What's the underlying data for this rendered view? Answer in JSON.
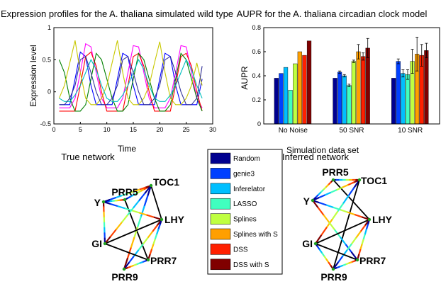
{
  "colors": {
    "random": "#00008f",
    "genie3": "#0040ff",
    "inferelator": "#00bfff",
    "lasso": "#40ffbf",
    "splines": "#bfff40",
    "splines_with_s": "#ff9f00",
    "dss": "#ff2000",
    "dss_with_s": "#800000"
  },
  "chart_data": [
    {
      "type": "line",
      "title": "Expression profiles for the A. thaliana simulated wild type",
      "xlabel": "Time",
      "ylabel": "Expression level",
      "xlim": [
        0,
        30
      ],
      "ylim": [
        -0.5,
        1
      ],
      "xticks": [
        "0",
        "5",
        "10",
        "15",
        "20",
        "25",
        "30"
      ],
      "yticks": [
        "-0.5",
        "0",
        "0.5",
        "1"
      ],
      "x": [
        1,
        2,
        3,
        4,
        5,
        6,
        7,
        8,
        9,
        10,
        11,
        12,
        13,
        14,
        15,
        16,
        17,
        18,
        19,
        20,
        21,
        22,
        23,
        24,
        25,
        26,
        27,
        28
      ],
      "series": [
        {
          "color": "#0000ff",
          "values": [
            -0.2,
            -0.2,
            -0.2,
            0.2,
            0.62,
            0.55,
            0.1,
            -0.2,
            -0.2,
            -0.2,
            -0.2,
            0.2,
            0.6,
            0.55,
            0.1,
            -0.2,
            -0.2,
            -0.2,
            -0.2,
            0.2,
            0.6,
            0.55,
            0.1,
            -0.2,
            -0.2,
            -0.2,
            -0.2,
            0.2
          ]
        },
        {
          "color": "#ff00ff",
          "values": [
            -0.25,
            -0.25,
            -0.25,
            -0.1,
            0.3,
            0.75,
            0.7,
            0.3,
            -0.1,
            -0.25,
            -0.25,
            -0.25,
            -0.1,
            0.3,
            0.72,
            0.7,
            0.3,
            -0.1,
            -0.25,
            -0.25,
            -0.25,
            -0.1,
            0.3,
            0.72,
            0.7,
            0.3,
            -0.1,
            -0.25
          ]
        },
        {
          "color": "#ff0000",
          "values": [
            -0.3,
            -0.3,
            -0.3,
            -0.3,
            0.1,
            0.55,
            0.62,
            0.4,
            0.0,
            -0.3,
            -0.3,
            -0.3,
            -0.3,
            0.1,
            0.55,
            0.6,
            0.4,
            0.0,
            -0.3,
            -0.3,
            -0.3,
            -0.3,
            0.1,
            0.55,
            0.6,
            0.4,
            0.0,
            -0.3
          ]
        },
        {
          "color": "#008000",
          "values": [
            0.5,
            0.3,
            -0.1,
            -0.3,
            -0.3,
            -0.2,
            0.2,
            0.6,
            0.5,
            0.2,
            -0.1,
            -0.3,
            -0.3,
            -0.2,
            0.2,
            0.6,
            0.5,
            0.2,
            -0.1,
            -0.3,
            -0.3,
            -0.2,
            0.2,
            0.6,
            0.5,
            0.2,
            -0.1,
            -0.3
          ]
        },
        {
          "color": "#c8c800",
          "values": [
            -0.1,
            0.1,
            0.45,
            0.8,
            0.3,
            -0.1,
            -0.2,
            -0.2,
            -0.1,
            0.1,
            0.45,
            0.8,
            0.3,
            -0.1,
            -0.2,
            -0.2,
            -0.1,
            0.1,
            0.45,
            0.78,
            0.3,
            -0.1,
            -0.2,
            -0.2,
            -0.1,
            0.1,
            0.45,
            0.1
          ]
        },
        {
          "color": "#00bfbf",
          "values": [
            -0.1,
            -0.15,
            -0.15,
            -0.05,
            0.1,
            0.3,
            0.5,
            0.35,
            0.1,
            -0.1,
            -0.15,
            -0.15,
            -0.05,
            0.1,
            0.3,
            0.5,
            0.35,
            0.1,
            -0.1,
            -0.15,
            -0.15,
            -0.05,
            0.1,
            0.3,
            0.5,
            0.35,
            0.1,
            -0.1
          ]
        },
        {
          "color": "#333399",
          "values": [
            -0.2,
            -0.2,
            -0.1,
            0.1,
            0.5,
            0.55,
            0.3,
            0.0,
            -0.2,
            -0.2,
            -0.1,
            0.1,
            0.5,
            0.55,
            0.3,
            0.0,
            -0.2,
            -0.2,
            -0.1,
            0.1,
            0.5,
            0.55,
            0.3,
            0.0,
            -0.2,
            -0.2,
            -0.1,
            0.4
          ]
        }
      ]
    },
    {
      "type": "bar",
      "title": "AUPR for the  A. thaliana circadian clock model",
      "xlabel": "Simulation data set",
      "ylabel": "AUPR",
      "ylim": [
        0,
        0.8
      ],
      "yticks": [
        "0",
        "0.2",
        "0.4",
        "0.6",
        "0.8"
      ],
      "categories": [
        "No Noise",
        "50 SNR",
        "10 SNR"
      ],
      "series": [
        {
          "name": "Random",
          "values": [
            0.38,
            0.38,
            0.38
          ],
          "errors": [
            0,
            0,
            0
          ]
        },
        {
          "name": "genie3",
          "values": [
            0.42,
            0.43,
            0.52
          ],
          "errors": [
            0,
            0.01,
            0.02
          ]
        },
        {
          "name": "Inferelator",
          "values": [
            0.47,
            0.4,
            0.42
          ],
          "errors": [
            0,
            0.01,
            0.03
          ]
        },
        {
          "name": "LASSO",
          "values": [
            0.28,
            0.32,
            0.41
          ],
          "errors": [
            0,
            0.01,
            0.04
          ]
        },
        {
          "name": "Splines",
          "values": [
            0.5,
            0.52,
            0.52
          ],
          "errors": [
            0,
            0.01,
            0.1
          ]
        },
        {
          "name": "Splines with S",
          "values": [
            0.6,
            0.6,
            0.58
          ],
          "errors": [
            0,
            0.06,
            0.14
          ]
        },
        {
          "name": "DSS",
          "values": [
            0.57,
            0.56,
            0.57
          ],
          "errors": [
            0,
            0.03,
            0.09
          ]
        },
        {
          "name": "DSS with S",
          "values": [
            0.69,
            0.63,
            0.61
          ],
          "errors": [
            0,
            0.08,
            0.06
          ]
        }
      ]
    }
  ],
  "networks": [
    {
      "title": "True network",
      "nodes": [
        "PRR5",
        "TOC1",
        "Y",
        "LHY",
        "GI",
        "PRR7",
        "PRR9"
      ],
      "edges": [
        [
          "PRR5",
          "TOC1"
        ],
        [
          "PRR5",
          "Y"
        ],
        [
          "PRR5",
          "PRR7"
        ],
        [
          "TOC1",
          "Y"
        ],
        [
          "TOC1",
          "PRR9"
        ],
        [
          "TOC1",
          "LHY"
        ],
        [
          "Y",
          "LHY"
        ],
        [
          "Y",
          "GI"
        ],
        [
          "LHY",
          "GI"
        ],
        [
          "LHY",
          "PRR9"
        ],
        [
          "LHY",
          "PRR7"
        ],
        [
          "GI",
          "PRR7"
        ],
        [
          "PRR7",
          "PRR9"
        ],
        [
          "GI",
          "TOC1"
        ]
      ]
    },
    {
      "title": "Inferred network",
      "nodes": [
        "PRR5",
        "TOC1",
        "Y",
        "LHY",
        "GI",
        "PRR7",
        "PRR9"
      ],
      "edges": [
        [
          "PRR5",
          "TOC1"
        ],
        [
          "PRR5",
          "Y"
        ],
        [
          "PRR5",
          "LHY"
        ],
        [
          "TOC1",
          "Y"
        ],
        [
          "TOC1",
          "GI"
        ],
        [
          "TOC1",
          "PRR9"
        ],
        [
          "Y",
          "LHY"
        ],
        [
          "Y",
          "PRR7"
        ],
        [
          "LHY",
          "GI"
        ],
        [
          "LHY",
          "PRR9"
        ],
        [
          "LHY",
          "PRR7"
        ],
        [
          "GI",
          "PRR7"
        ],
        [
          "GI",
          "PRR9"
        ],
        [
          "PRR7",
          "PRR9"
        ]
      ]
    }
  ],
  "legend": {
    "items": [
      "Random",
      "genie3",
      "Inferelator",
      "LASSO",
      "Splines",
      "Splines with S",
      "DSS",
      "DSS with S"
    ]
  }
}
